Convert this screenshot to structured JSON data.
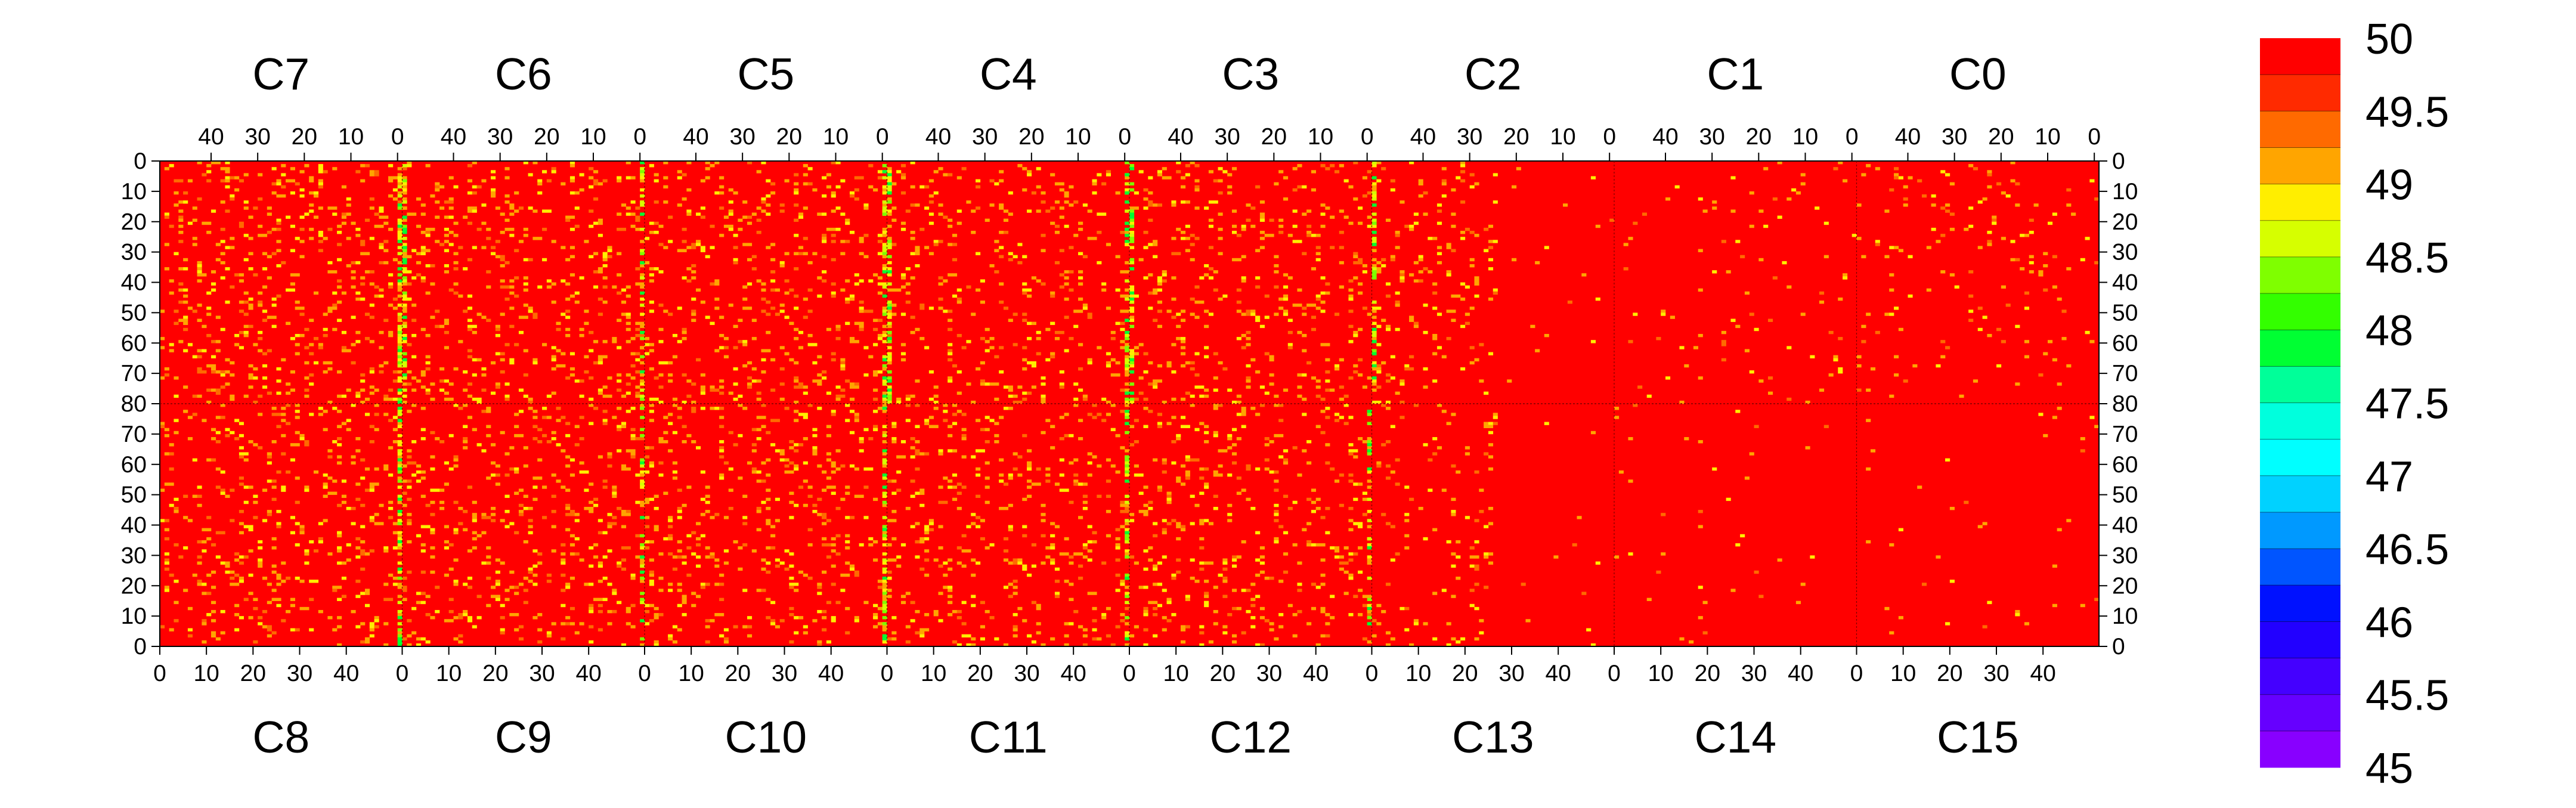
{
  "chart_data": {
    "type": "heatmap",
    "title": "",
    "xlabel": "",
    "ylabel": "",
    "top_chips": [
      "C7",
      "C6",
      "C5",
      "C4",
      "C3",
      "C2",
      "C1",
      "C0"
    ],
    "bottom_chips": [
      "C8",
      "C9",
      "C10",
      "C11",
      "C12",
      "C13",
      "C14",
      "C15"
    ],
    "top_column_ticks": [
      "40",
      "30",
      "20",
      "10",
      "0"
    ],
    "bottom_column_ticks": [
      "0",
      "10",
      "20",
      "30",
      "40"
    ],
    "y_ticks": [
      "0",
      "10",
      "20",
      "30",
      "40",
      "50",
      "60",
      "70",
      "80",
      "70",
      "60",
      "50",
      "40",
      "30",
      "20",
      "10",
      "0"
    ],
    "columns_per_chip": 52,
    "rows_per_half": 80,
    "zlim": [
      45,
      50
    ],
    "colorbar": {
      "labels": [
        "50",
        "49.5",
        "49",
        "48.5",
        "48",
        "47.5",
        "47",
        "46.5",
        "46",
        "45.5",
        "45"
      ],
      "colors": [
        "#ff0000",
        "#ff2a00",
        "#ff6a00",
        "#ffa500",
        "#ffee00",
        "#d6ff00",
        "#7fff00",
        "#33ff00",
        "#00ff33",
        "#00ff99",
        "#00ffdd",
        "#00ffff",
        "#00d2ff",
        "#0099ff",
        "#0055ff",
        "#0011ff",
        "#2200ff",
        "#4400ff",
        "#6600ff",
        "#8800ff"
      ]
    },
    "values_description_free": true,
    "baseline_value": 50,
    "hot_columns": {
      "top": [
        [
          0,
          51,
          0.55
        ],
        [
          1,
          0,
          0.55
        ],
        [
          1,
          51,
          0.5
        ],
        [
          2,
          51,
          0.55
        ],
        [
          3,
          0,
          0.55
        ],
        [
          3,
          51,
          0.4
        ],
        [
          4,
          0,
          0.55
        ],
        [
          5,
          0,
          0.5
        ]
      ],
      "bottom": [
        [
          0,
          51,
          0.55
        ],
        [
          1,
          51,
          0.45
        ],
        [
          2,
          51,
          0.55
        ],
        [
          3,
          51,
          0.4
        ],
        [
          4,
          51,
          0.3
        ]
      ]
    }
  }
}
